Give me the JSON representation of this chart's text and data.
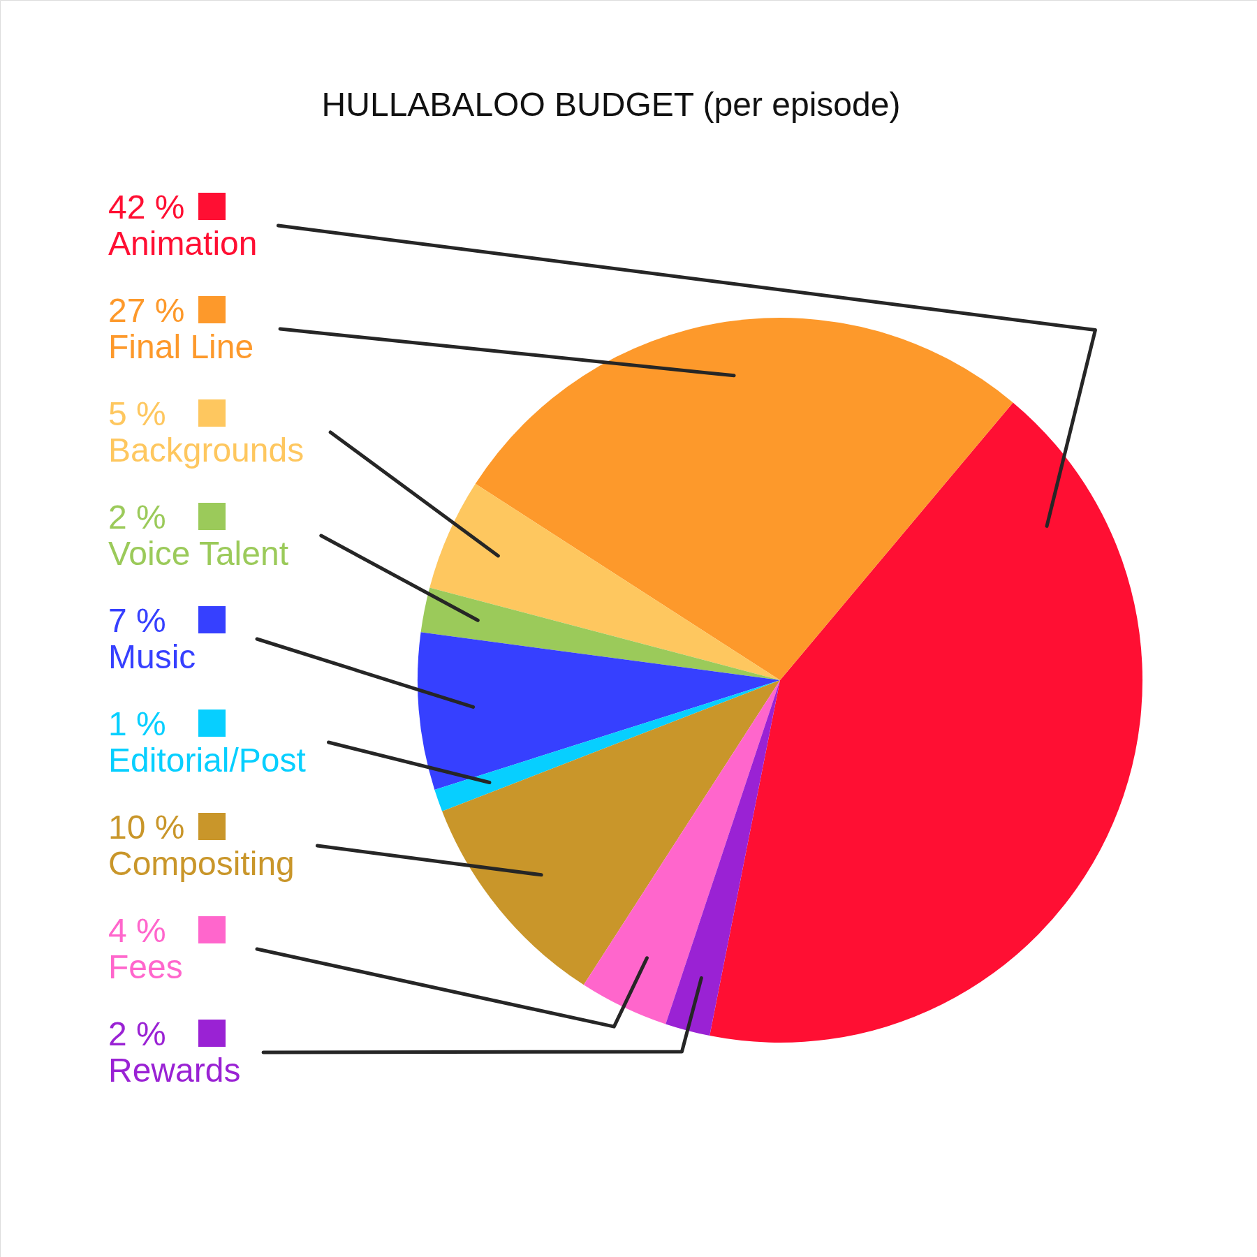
{
  "chart_data": {
    "type": "pie",
    "title": "HULLABALOO BUDGET (per episode)",
    "categories": [
      "Animation",
      "Final Line",
      "Backgrounds",
      "Voice Talent",
      "Music",
      "Editorial/Post",
      "Compositing",
      "Fees",
      "Rewards"
    ],
    "values": [
      42,
      27,
      5,
      2,
      7,
      1,
      10,
      4,
      2
    ],
    "colors": [
      "#ff0f33",
      "#fd992b",
      "#fec75f",
      "#9bca5a",
      "#3640ff",
      "#07cfff",
      "#c9962a",
      "#ff66cc",
      "#9a22d4"
    ],
    "value_labels": [
      "42 %",
      "27 %",
      "5 %",
      "2 %",
      "7 %",
      "1 %",
      "10 %",
      "4 %",
      "2 %"
    ],
    "legend": "left"
  }
}
